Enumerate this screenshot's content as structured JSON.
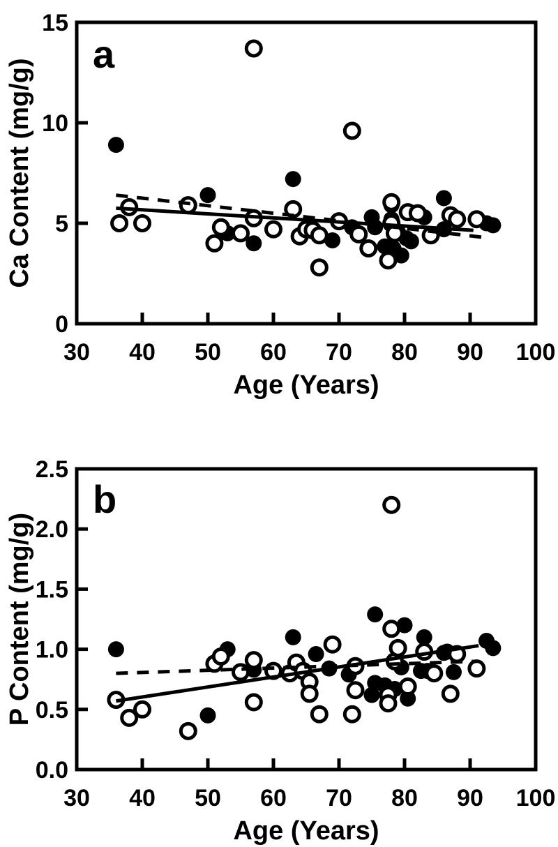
{
  "figure": {
    "background": "#ffffff",
    "foreground": "#000000",
    "panels_count": 2
  },
  "chart_data": [
    {
      "type": "scatter",
      "panel_label": "a",
      "title": "",
      "xlabel": "Age (Years)",
      "ylabel": "Ca Content (mg/g)",
      "xlim": [
        30,
        100
      ],
      "ylim": [
        0,
        15
      ],
      "xticks": [
        30,
        40,
        50,
        60,
        70,
        80,
        90,
        100
      ],
      "xtick_labels": [
        "30",
        "40",
        "50",
        "60",
        "70",
        "80",
        "90",
        "100"
      ],
      "yticks": [
        0,
        5,
        10,
        15
      ],
      "ytick_labels": [
        "0",
        "5",
        "10",
        "15"
      ],
      "grid": false,
      "legend_position": "none",
      "frame": "full-box",
      "series": [
        {
          "name": "open_circles",
          "marker": "open-circle",
          "points": [
            [
              36.5,
              5.0
            ],
            [
              38,
              5.8
            ],
            [
              40,
              5.0
            ],
            [
              47,
              5.9
            ],
            [
              51,
              4.0
            ],
            [
              52,
              4.8
            ],
            [
              55,
              4.5
            ],
            [
              57,
              13.7
            ],
            [
              57,
              5.25
            ],
            [
              60,
              4.7
            ],
            [
              63,
              5.7
            ],
            [
              64,
              4.35
            ],
            [
              65,
              4.7
            ],
            [
              66,
              4.65
            ],
            [
              67,
              4.4
            ],
            [
              67,
              2.8
            ],
            [
              70,
              5.1
            ],
            [
              72,
              9.6
            ],
            [
              73,
              4.45
            ],
            [
              74.5,
              3.75
            ],
            [
              77.5,
              3.15
            ],
            [
              78,
              6.05
            ],
            [
              78,
              5.0
            ],
            [
              78.5,
              4.5
            ],
            [
              80.5,
              5.55
            ],
            [
              82,
              5.5
            ],
            [
              84,
              4.4
            ],
            [
              87,
              5.4
            ],
            [
              88,
              5.2
            ],
            [
              91,
              5.2
            ]
          ]
        },
        {
          "name": "filled_circles",
          "marker": "filled-circle",
          "points": [
            [
              36,
              8.9
            ],
            [
              50,
              6.4
            ],
            [
              53,
              4.5
            ],
            [
              57,
              4.0
            ],
            [
              63,
              7.2
            ],
            [
              69,
              4.15
            ],
            [
              72,
              4.8
            ],
            [
              75,
              5.3
            ],
            [
              75.5,
              4.8
            ],
            [
              77,
              3.85
            ],
            [
              78,
              5.9
            ],
            [
              78,
              5.2
            ],
            [
              78.3,
              3.75
            ],
            [
              79,
              4.55
            ],
            [
              79.5,
              3.4
            ],
            [
              80.3,
              4.25
            ],
            [
              81,
              4.1
            ],
            [
              83,
              5.3
            ],
            [
              86,
              6.25
            ],
            [
              86,
              4.7
            ],
            [
              92.5,
              5.0
            ],
            [
              93.5,
              4.9
            ]
          ]
        },
        {
          "name": "regression_solid",
          "marker": "line-solid",
          "x": [
            36,
            90.5
          ],
          "y": [
            5.75,
            4.65
          ]
        },
        {
          "name": "regression_dashed",
          "marker": "line-dashed",
          "x": [
            36,
            92
          ],
          "y": [
            6.4,
            4.3
          ]
        }
      ]
    },
    {
      "type": "scatter",
      "panel_label": "b",
      "title": "",
      "xlabel": "Age (Years)",
      "ylabel": "P Content (mg/g)",
      "xlim": [
        30,
        100
      ],
      "ylim": [
        0,
        2.5
      ],
      "xticks": [
        30,
        40,
        50,
        60,
        70,
        80,
        90,
        100
      ],
      "xtick_labels": [
        "30",
        "40",
        "50",
        "60",
        "70",
        "80",
        "90",
        "100"
      ],
      "yticks": [
        0,
        0.5,
        1.0,
        1.5,
        2.0,
        2.5
      ],
      "ytick_labels": [
        "0.0",
        "0.5",
        "1.0",
        "1.5",
        "2.0",
        "2.5"
      ],
      "grid": false,
      "legend_position": "none",
      "frame": "full-box",
      "series": [
        {
          "name": "open_circles",
          "marker": "open-circle",
          "points": [
            [
              36,
              0.58
            ],
            [
              38,
              0.43
            ],
            [
              40,
              0.5
            ],
            [
              47,
              0.32
            ],
            [
              51,
              0.88
            ],
            [
              52,
              0.94
            ],
            [
              55,
              0.81
            ],
            [
              57,
              0.91
            ],
            [
              57,
              0.56
            ],
            [
              60,
              0.82
            ],
            [
              62.5,
              0.8
            ],
            [
              63.5,
              0.89
            ],
            [
              64.5,
              0.82
            ],
            [
              65.5,
              0.73
            ],
            [
              65.5,
              0.63
            ],
            [
              67,
              0.46
            ],
            [
              69,
              1.04
            ],
            [
              72,
              0.46
            ],
            [
              72.5,
              0.86
            ],
            [
              72.5,
              0.66
            ],
            [
              77.5,
              0.62
            ],
            [
              77.5,
              0.55
            ],
            [
              78,
              2.2
            ],
            [
              78,
              1.17
            ],
            [
              78.5,
              0.9
            ],
            [
              79,
              1.01
            ],
            [
              80.5,
              0.69
            ],
            [
              83,
              0.98
            ],
            [
              84.5,
              0.8
            ],
            [
              87,
              0.63
            ],
            [
              88,
              0.96
            ],
            [
              91,
              0.84
            ]
          ]
        },
        {
          "name": "filled_circles",
          "marker": "filled-circle",
          "points": [
            [
              36,
              1.0
            ],
            [
              50,
              0.45
            ],
            [
              53,
              1.0
            ],
            [
              57,
              0.83
            ],
            [
              63,
              1.1
            ],
            [
              66.5,
              0.96
            ],
            [
              68.5,
              0.84
            ],
            [
              71.5,
              0.79
            ],
            [
              75,
              0.62
            ],
            [
              75.5,
              1.29
            ],
            [
              75.5,
              0.72
            ],
            [
              77,
              0.7
            ],
            [
              78.5,
              0.67
            ],
            [
              79.5,
              0.85
            ],
            [
              80,
              1.2
            ],
            [
              80.5,
              0.59
            ],
            [
              82.5,
              0.82
            ],
            [
              83,
              1.1
            ],
            [
              83.5,
              0.82
            ],
            [
              86,
              0.97
            ],
            [
              86.5,
              0.98
            ],
            [
              87.5,
              0.81
            ],
            [
              92.5,
              1.07
            ],
            [
              93.5,
              1.01
            ]
          ]
        },
        {
          "name": "regression_solid",
          "marker": "line-solid",
          "x": [
            36,
            91.3
          ],
          "y": [
            0.57,
            1.03
          ]
        },
        {
          "name": "regression_dashed",
          "marker": "line-dashed",
          "x": [
            36,
            91
          ],
          "y": [
            0.8,
            0.9
          ]
        }
      ]
    }
  ],
  "style_tokens": {
    "axis_color": "#000000",
    "marker_fill": "#000000",
    "open_marker_fill": "#ffffff",
    "background": "#ffffff"
  }
}
